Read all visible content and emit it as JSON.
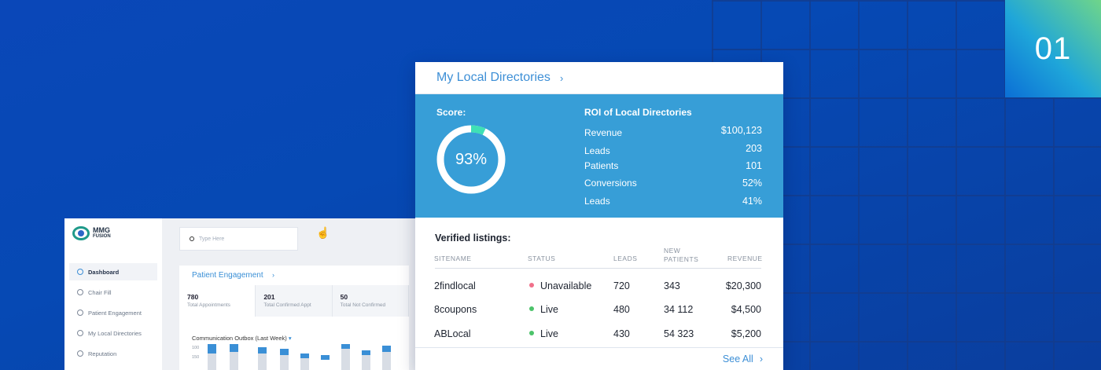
{
  "badge": "01",
  "dashboard": {
    "logo_top": "MMG",
    "logo_bottom": "FUSION",
    "search_placeholder": "Type Here",
    "nav": [
      {
        "label": "Dashboard",
        "icon": "gauge-icon",
        "active": true
      },
      {
        "label": "Chair Fill",
        "icon": "dental-chair-icon",
        "active": false
      },
      {
        "label": "Patient Engagement",
        "icon": "person-icon",
        "active": false
      },
      {
        "label": "My Local Directories",
        "icon": "compass-icon",
        "active": false
      },
      {
        "label": "Reputation",
        "icon": "star-icon",
        "active": false
      }
    ],
    "patient_engagement": {
      "title": "Patient Engagement",
      "stats": [
        {
          "value": "780",
          "label": "Total Appointments"
        },
        {
          "value": "201",
          "label": "Total Confirmed Appt"
        },
        {
          "value": "50",
          "label": "Total Not Confirmed"
        }
      ],
      "chart_title": "Communication Outbox (Last Week)",
      "y_ticks": [
        "100",
        "150"
      ]
    }
  },
  "card": {
    "title": "My Local Directories",
    "score_label": "Score:",
    "score_value": "93%",
    "score_fraction": 0.93,
    "roi_title": "ROI of Local Directories",
    "roi": [
      {
        "label": "Revenue",
        "value": "$100,123"
      },
      {
        "label": "Leads",
        "value": "203"
      },
      {
        "label": "Patients",
        "value": "101"
      },
      {
        "label": "Conversions",
        "value": "52%"
      },
      {
        "label": "Leads",
        "value": "41%"
      }
    ],
    "verified_title": "Verified listings:",
    "columns": [
      "SITENAME",
      "STATUS",
      "LEADS",
      "NEW PATIENTS",
      "REVENUE"
    ],
    "rows": [
      {
        "site": "2findlocal",
        "status": "Unavailable",
        "status_color": "#f0708a",
        "leads": "720",
        "new_patients": "343",
        "revenue": "$20,300"
      },
      {
        "site": "8coupons",
        "status": "Live",
        "status_color": "#4cc36a",
        "leads": "480",
        "new_patients": "34 112",
        "revenue": "$4,500"
      },
      {
        "site": "ABLocal",
        "status": "Live",
        "status_color": "#4cc36a",
        "leads": "430",
        "new_patients": "54 323",
        "revenue": "$5,200"
      }
    ],
    "see_all": "See All"
  },
  "colors": {
    "panel_blue": "#379ed7",
    "donut_accent": "#3fe0b5",
    "link_blue": "#3d8fd6"
  }
}
